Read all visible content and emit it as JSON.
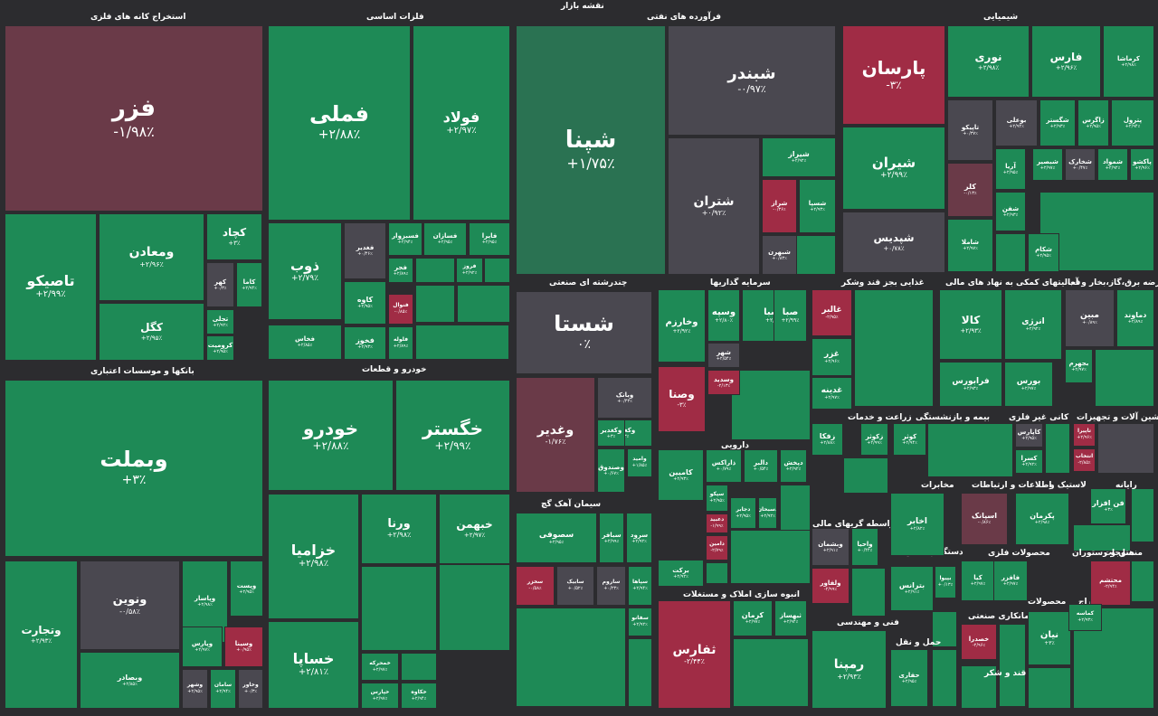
{
  "title": "نقشه بازار",
  "colors": {
    "strong_green": "#1e8a56",
    "muted_green": "#2a7252",
    "neutral": "#4a4850",
    "muted_red": "#6a3a48",
    "strong_red": "#a02c45",
    "background": "#2c2c2f"
  },
  "sectors": [
    {
      "id": "metal-mining",
      "name": "استخراج کانه های فلزی"
    },
    {
      "id": "basic-metals",
      "name": "فلزات اساسی"
    },
    {
      "id": "oil-products",
      "name": "فرآورده های نفتی"
    },
    {
      "id": "chemicals",
      "name": "شیمیایی"
    },
    {
      "id": "banks",
      "name": "بانکها و موسسات اعتباری"
    },
    {
      "id": "automotive",
      "name": "خودرو و قطعات"
    },
    {
      "id": "multi-industry",
      "name": "چندرشته ای صنعتی"
    },
    {
      "id": "investments",
      "name": "سرمایه گذاریها"
    },
    {
      "id": "food",
      "name": "غذایی بجز قند وشکر"
    },
    {
      "id": "financial-aux",
      "name": "فعالیتهای کمکی به نهاد های مالی"
    },
    {
      "id": "utilities",
      "name": "عرضه برق،گاز،بخار و آب"
    },
    {
      "id": "farming",
      "name": "زراعت و خدمات"
    },
    {
      "id": "insurance",
      "name": "بیمه و بازنشستگی"
    },
    {
      "id": "non-metal-minerals",
      "name": "کانی غیر فلزی"
    },
    {
      "id": "machinery",
      "name": "ماشین آلات و تجهیزات"
    },
    {
      "id": "pharma",
      "name": "دارویی"
    },
    {
      "id": "cement",
      "name": "سیمان آهک گچ"
    },
    {
      "id": "transport",
      "name": "مخابرات"
    },
    {
      "id": "telecom",
      "name": "اطلاعات و ارتباطات"
    },
    {
      "id": "tires",
      "name": "لاستیک و"
    },
    {
      "id": "computer",
      "name": "رایانه"
    },
    {
      "id": "financial-intermediaries",
      "name": "واسطه گریهای مالی"
    },
    {
      "id": "real-estate",
      "name": "انبوه سازی املاک و مستغلات"
    },
    {
      "id": "contractors",
      "name": "دستگاههای برقی"
    },
    {
      "id": "metal-products",
      "name": "محصولات فلزی"
    },
    {
      "id": "hotels",
      "name": "هتل و رستوران"
    },
    {
      "id": "textiles",
      "name": "منسوجات"
    },
    {
      "id": "engineering",
      "name": "فنی و مهندسی"
    },
    {
      "id": "shipping",
      "name": "حمل و نقل"
    },
    {
      "id": "sugar",
      "name": "قند و شکر"
    },
    {
      "id": "contract-mfg",
      "name": "پیمانکاری صنعتی"
    },
    {
      "id": "products",
      "name": "محصولات"
    },
    {
      "id": "extraction",
      "name": "استخراج"
    }
  ],
  "tiles": [
    {
      "name": "فزر",
      "pct": "-۱/۹۸٪"
    },
    {
      "name": "تاصیکو",
      "pct": "+۲/۹۹٪"
    },
    {
      "name": "ومعادن",
      "pct": "+۲/۹۶٪"
    },
    {
      "name": "کچاد",
      "pct": "+۳٪"
    },
    {
      "name": "کهر",
      "pct": "+۰/۳٪"
    },
    {
      "name": "کاما",
      "pct": "+۲/۹۴٪"
    },
    {
      "name": "کگل",
      "pct": "+۲/۹۵٪"
    },
    {
      "name": "تجلی",
      "pct": "+۲/۹۲٪"
    },
    {
      "name": "کرومیت",
      "pct": "+۲/۹۵٪"
    },
    {
      "name": "فملی",
      "pct": "+۲/۸۸٪"
    },
    {
      "name": "فولاد",
      "pct": "+۲/۹۷٪"
    },
    {
      "name": "ذوب",
      "pct": "+۲/۷۹٪"
    },
    {
      "name": "فخاس",
      "pct": "+۲/۸۵٪"
    },
    {
      "name": "فغدیر",
      "pct": "+۰/۴۶٪"
    },
    {
      "name": "کاوه",
      "pct": "+۲/۹۵٪"
    },
    {
      "name": "فخوز",
      "pct": "+۲/۹۳٪"
    },
    {
      "name": "فسبزوار",
      "pct": "+۲/۹۴٪"
    },
    {
      "name": "فسازان",
      "pct": "+۲/۹۵٪"
    },
    {
      "name": "فایرا",
      "pct": "+۲/۹۵٪"
    },
    {
      "name": "فجر",
      "pct": "+۲/۸۹٪"
    },
    {
      "name": "فروز",
      "pct": "+۲/۹۲٪"
    },
    {
      "name": "فنوال",
      "pct": "-۰/۸۵٪"
    },
    {
      "name": "فلوله",
      "pct": "+۲/۸۹٪"
    },
    {
      "name": "شپنا",
      "pct": "+۱/۷۵٪"
    },
    {
      "name": "شبندر",
      "pct": "-۰/۹۷٪"
    },
    {
      "name": "شتران",
      "pct": "+۰/۹۲٪"
    },
    {
      "name": "شیراز",
      "pct": "+۲/۹۲٪"
    },
    {
      "name": "شراز",
      "pct": "-۰/۳۶٪"
    },
    {
      "name": "شسپا",
      "pct": "+۲/۹۳٪"
    },
    {
      "name": "شبهرن",
      "pct": "+۰/۸۳٪"
    },
    {
      "name": "شستا",
      "pct": "۰٪"
    },
    {
      "name": "وغدیر",
      "pct": "-۱/۷۶٪"
    },
    {
      "name": "وبانک",
      "pct": "+۰/۴۳٪"
    },
    {
      "name": "وکغدیر",
      "pct": "+۳٪"
    },
    {
      "name": "وامید",
      "pct": "+۱/۸۵٪"
    },
    {
      "name": "وصندوق",
      "pct": "+۰/۶۷٪"
    },
    {
      "name": "وبملت",
      "pct": "+۳٪"
    },
    {
      "name": "ونوین",
      "pct": "-۰/۵۸٪"
    },
    {
      "name": "وتجارت",
      "pct": "+۲/۹۳٪"
    },
    {
      "name": "وبصادر",
      "pct": "+۲/۸۵٪"
    },
    {
      "name": "وپاسار",
      "pct": "+۲/۹۸٪"
    },
    {
      "name": "وپست",
      "pct": "+۲/۹۵٪"
    },
    {
      "name": "وپارس",
      "pct": "+۲/۹۷٪"
    },
    {
      "name": "وسینا",
      "pct": "+۰/۹۵٪"
    },
    {
      "name": "وشهر",
      "pct": "+۲/۹۵٪"
    },
    {
      "name": "سامان",
      "pct": "+۲/۹۴٪"
    },
    {
      "name": "وخاور",
      "pct": "+۰/۳٪"
    },
    {
      "name": "خودرو",
      "pct": "+۲/۸۸٪"
    },
    {
      "name": "خگستر",
      "pct": "+۲/۹۹٪"
    },
    {
      "name": "خزامیا",
      "pct": "+۲/۹۸٪"
    },
    {
      "name": "ورنا",
      "pct": "+۲/۹۸٪"
    },
    {
      "name": "خبهمن",
      "pct": "+۲/۹۷٪"
    },
    {
      "name": "خساپا",
      "pct": "+۲/۸۱٪"
    },
    {
      "name": "خمحرکه",
      "pct": "+۲/۹۷٪"
    },
    {
      "name": "خپارس",
      "pct": "+۲/۹۷٪"
    },
    {
      "name": "خکاوه",
      "pct": "+۲/۹۴٪"
    },
    {
      "name": "پارسان",
      "pct": "-۳٪"
    },
    {
      "name": "نوری",
      "pct": "+۲/۹۸٪"
    },
    {
      "name": "فارس",
      "pct": "+۲/۹۶٪"
    },
    {
      "name": "کرماشا",
      "pct": "+۲/۹۸٪"
    },
    {
      "name": "شیران",
      "pct": "+۲/۹۹٪"
    },
    {
      "name": "تاپیکو",
      "pct": "+۰/۳۷٪"
    },
    {
      "name": "بوعلی",
      "pct": "+۲/۹۴٪"
    },
    {
      "name": "شگستر",
      "pct": "+۲/۹۳٪"
    },
    {
      "name": "زاگرس",
      "pct": "+۲/۹۵٪"
    },
    {
      "name": "پترول",
      "pct": "+۲/۹۴٪"
    },
    {
      "name": "شپدیس",
      "pct": "+۰/۷۸٪"
    },
    {
      "name": "کلر",
      "pct": "-۰/۱۳٪"
    },
    {
      "name": "شاملا",
      "pct": "+۲/۹۷٪"
    },
    {
      "name": "شکام",
      "pct": "+۲/۹۵٪"
    },
    {
      "name": "شفن",
      "pct": "+۲/۹۳٪"
    },
    {
      "name": "آریا",
      "pct": "+۲/۹۵٪"
    },
    {
      "name": "شبصیر",
      "pct": "+۲/۹۷٪"
    },
    {
      "name": "شخارک",
      "pct": "+۰/۴۷٪"
    },
    {
      "name": "شمواد",
      "pct": "+۲/۹۲٪"
    },
    {
      "name": "پاکشو",
      "pct": "+۲/۹۶٪"
    },
    {
      "name": "وصبا",
      "pct": "+۲/۸۵٪"
    },
    {
      "name": "وسپه",
      "pct": "+۲/۸۰٪"
    },
    {
      "name": "صبا",
      "pct": "+۲/۹۹٪"
    },
    {
      "name": "وخارزم",
      "pct": "+۲/۹۲٪"
    },
    {
      "name": "شهر",
      "pct": "+۲/۵۴٪"
    },
    {
      "name": "وصنا",
      "pct": "-۳٪"
    },
    {
      "name": "وسدید",
      "pct": "-۲/۱۳٪"
    },
    {
      "name": "غالبر",
      "pct": "-۲/۹۵٪"
    },
    {
      "name": "غزر",
      "pct": "+۲/۹۶٪"
    },
    {
      "name": "غدینه",
      "pct": "+۲/۹۷٪"
    },
    {
      "name": "کالا",
      "pct": "+۲/۹۳٪"
    },
    {
      "name": "انرژی",
      "pct": "+۲/۹۲٪"
    },
    {
      "name": "فرابورس",
      "pct": "+۲/۹۳٪"
    },
    {
      "name": "بورس",
      "pct": "+۲/۹۷٪"
    },
    {
      "name": "مبین",
      "pct": "+۰/۸۹٪"
    },
    {
      "name": "دماوند",
      "pct": "+۲/۸۹٪"
    },
    {
      "name": "بجهرم",
      "pct": "+۲/۹۷٪"
    },
    {
      "name": "زفکا",
      "pct": "+۲/۸۸٪"
    },
    {
      "name": "زکوثر",
      "pct": "+۲/۹۹٪"
    },
    {
      "name": "کوثر",
      "pct": "+۲/۹۴٪"
    },
    {
      "name": "کاپارس",
      "pct": "+۲/۹۵٪"
    },
    {
      "name": "کسرا",
      "pct": "+۲/۹۲٪"
    },
    {
      "name": "تاپیرا",
      "pct": "+۲/۹۶٪"
    },
    {
      "name": "انتخاب",
      "pct": "-۲/۸۵٪"
    },
    {
      "name": "کامیین",
      "pct": "+۲/۹۳٪"
    },
    {
      "name": "دالبر",
      "pct": "+۰/۵۴٪"
    },
    {
      "name": "ذاراکس",
      "pct": "+۰/۷۹٪"
    },
    {
      "name": "دپخش",
      "pct": "+۲/۹۲٪"
    },
    {
      "name": "سپکو",
      "pct": "+۲/۹۵٪"
    },
    {
      "name": "دجابر",
      "pct": "+۲/۹۵٪"
    },
    {
      "name": "دعبید",
      "pct": "-۱/۹۹٪"
    },
    {
      "name": "دسبحان",
      "pct": "+۲/۹۲٪"
    },
    {
      "name": "دامین",
      "pct": "-۲/۷۹٪"
    },
    {
      "name": "برکت",
      "pct": "+۲/۹۲٪"
    },
    {
      "name": "سصوفی",
      "pct": "+۲/۹۵٪"
    },
    {
      "name": "سبافر",
      "pct": "+۲/۹۹٪"
    },
    {
      "name": "سرود",
      "pct": "+۲/۹۲٪"
    },
    {
      "name": "سخزر",
      "pct": "-۰/۵۸٪"
    },
    {
      "name": "سابیک",
      "pct": "+۰/۵۲٪"
    },
    {
      "name": "ساروم",
      "pct": "+۰/۲۳٪"
    },
    {
      "name": "سپاها",
      "pct": "+۲/۹۴٪"
    },
    {
      "name": "سفانو",
      "pct": "+۲/۹۲٪"
    },
    {
      "name": "ثفارس",
      "pct": "-۲/۴۴٪"
    },
    {
      "name": "کرمان",
      "pct": "+۲/۹۷٪"
    },
    {
      "name": "ثبهساز",
      "pct": "+۲/۹۴٪"
    },
    {
      "name": "رمپنا",
      "pct": "+۲/۹۳٪"
    },
    {
      "name": "وبشمان",
      "pct": "+۲/۹۱٪"
    },
    {
      "name": "واحیا",
      "pct": "+۰/۴۴٪"
    },
    {
      "name": "ولفاور",
      "pct": "-۲/۹۹٪"
    },
    {
      "name": "اخابر",
      "pct": "+۲/۸۲٪"
    },
    {
      "name": "اسپانک",
      "pct": "-۰/۸۶٪"
    },
    {
      "name": "پکرمان",
      "pct": "+۲/۹۸٪"
    },
    {
      "name": "فن افزار",
      "pct": "+۳٪"
    },
    {
      "name": "بترانس",
      "pct": "+۲/۹۱٪"
    },
    {
      "name": "بپیوا",
      "pct": "+۰/۱۳٪"
    },
    {
      "name": "کیا",
      "pct": "+۲/۹۷٪"
    },
    {
      "name": "فافزر",
      "pct": "+۲/۹۷٪"
    },
    {
      "name": "محتشم",
      "pct": "-۲/۹۴٪"
    },
    {
      "name": "نیان",
      "pct": "+۳٪"
    },
    {
      "name": "خصدرا",
      "pct": "-۲/۹۶٪"
    },
    {
      "name": "حفاری",
      "pct": "+۲/۹۵٪"
    },
    {
      "name": "وکغدیر",
      "pct": "+۳٪"
    },
    {
      "name": "کماسه",
      "pct": "+۲/۹۳٪"
    }
  ]
}
